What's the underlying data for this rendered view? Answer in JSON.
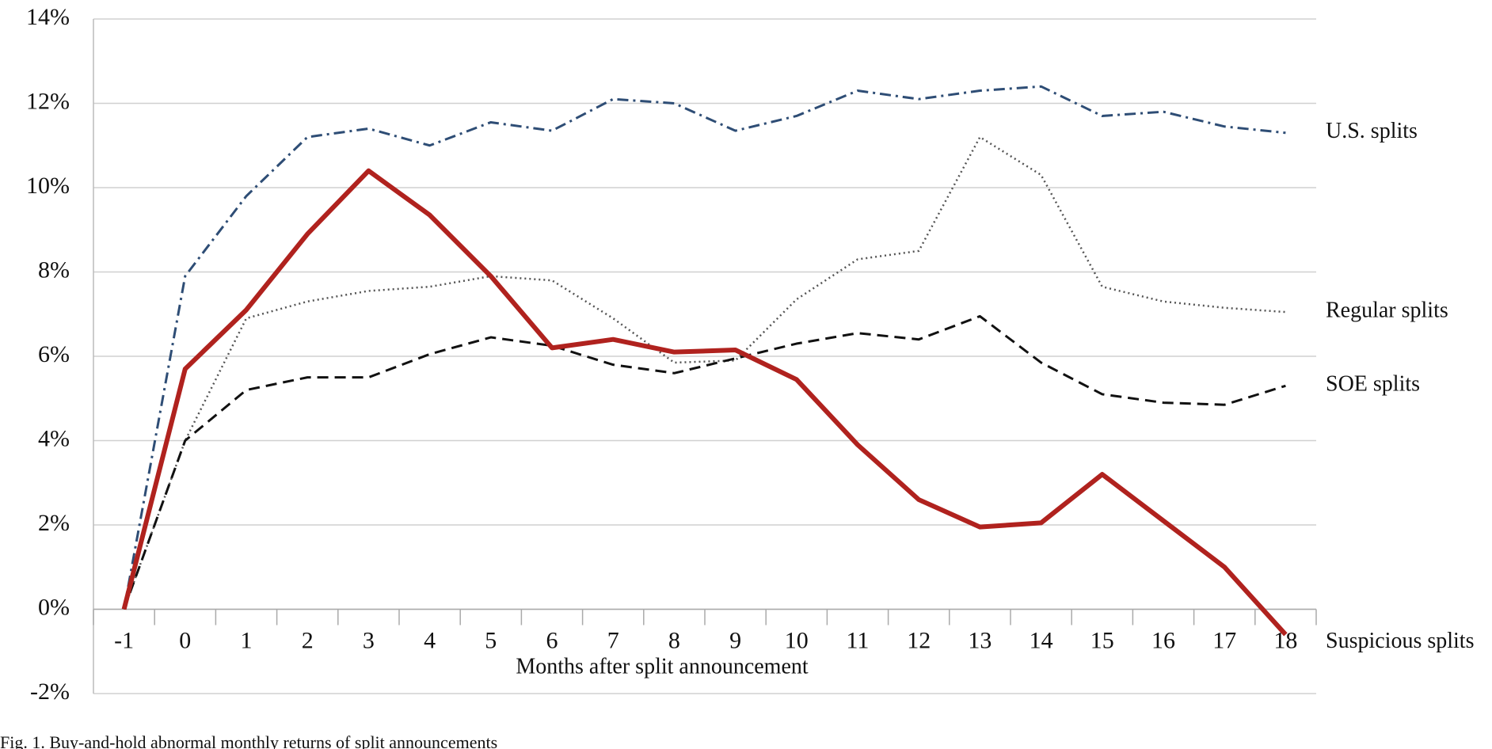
{
  "chart_data": {
    "type": "line",
    "x_label": "Months after split announcement",
    "caption": "Fig. 1. Buy-and-hold abnormal monthly returns of split announcements",
    "x": [
      -1,
      0,
      1,
      2,
      3,
      4,
      5,
      6,
      7,
      8,
      9,
      10,
      11,
      12,
      13,
      14,
      15,
      16,
      17,
      18
    ],
    "xlim": [
      -1.5,
      18.5
    ],
    "xticks": [
      -1,
      0,
      1,
      2,
      3,
      4,
      5,
      6,
      7,
      8,
      9,
      10,
      11,
      12,
      13,
      14,
      15,
      16,
      17,
      18
    ],
    "ylim": [
      -2,
      14
    ],
    "yticks": [
      {
        "value": -2,
        "label": "-2%"
      },
      {
        "value": 0,
        "label": "0%"
      },
      {
        "value": 2,
        "label": "2%"
      },
      {
        "value": 4,
        "label": "4%"
      },
      {
        "value": 6,
        "label": "6%"
      },
      {
        "value": 8,
        "label": "8%"
      },
      {
        "value": 10,
        "label": "10%"
      },
      {
        "value": 12,
        "label": "12%"
      },
      {
        "value": 14,
        "label": "14%"
      }
    ],
    "grid": true,
    "series": [
      {
        "name": "U.S. splits",
        "color": "#2e4d75",
        "style": "dashdot",
        "values": [
          0,
          7.9,
          9.8,
          11.2,
          11.4,
          11.0,
          11.55,
          11.35,
          12.1,
          12.0,
          11.35,
          11.7,
          12.3,
          12.1,
          12.3,
          12.4,
          11.7,
          11.8,
          11.45,
          11.3
        ]
      },
      {
        "name": "Regular splits",
        "color": "#555555",
        "style": "dotted",
        "values": [
          0,
          4.0,
          6.9,
          7.3,
          7.55,
          7.65,
          7.9,
          7.8,
          6.9,
          5.85,
          5.9,
          7.35,
          8.3,
          8.5,
          11.2,
          10.3,
          7.65,
          7.3,
          7.15,
          7.05
        ]
      },
      {
        "name": "SOE splits",
        "color": "#111111",
        "style": "dashed",
        "values": [
          0,
          4.0,
          5.2,
          5.5,
          5.5,
          6.05,
          6.45,
          6.25,
          5.8,
          5.6,
          5.95,
          6.3,
          6.55,
          6.4,
          6.95,
          5.85,
          5.1,
          4.9,
          4.85,
          5.3
        ]
      },
      {
        "name": "Suspicious splits",
        "color": "#b0221e",
        "style": "solid",
        "values": [
          0,
          5.7,
          7.1,
          8.9,
          10.4,
          9.35,
          7.9,
          6.2,
          6.4,
          6.1,
          6.15,
          5.45,
          3.9,
          2.6,
          1.95,
          2.05,
          3.2,
          2.1,
          1.0,
          -0.6
        ]
      }
    ]
  }
}
